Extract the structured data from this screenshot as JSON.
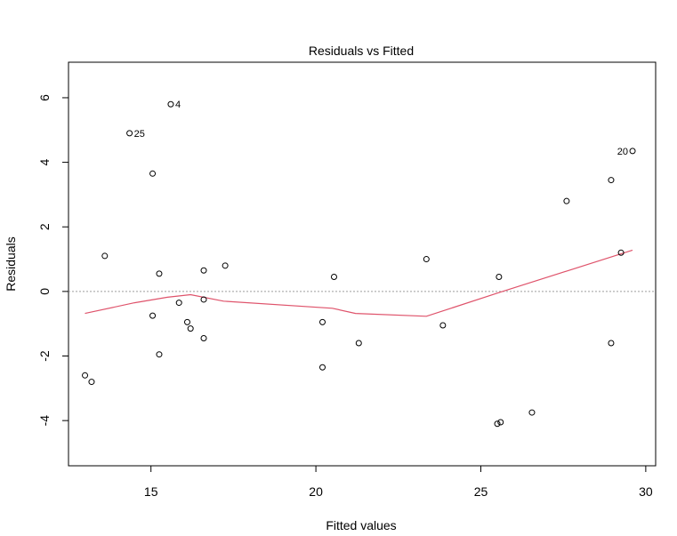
{
  "chart_data": {
    "type": "scatter",
    "title": "Residuals vs Fitted",
    "xlabel": "Fitted values",
    "ylabel": "Residuals",
    "xlim": [
      12.5,
      30.3
    ],
    "ylim": [
      -5.4,
      7.1
    ],
    "xticks": [
      15,
      20,
      25,
      30
    ],
    "yticks": [
      -4,
      -2,
      0,
      2,
      4,
      6
    ],
    "reference_line": 0,
    "points": [
      {
        "x": 13.0,
        "y": -2.6
      },
      {
        "x": 13.2,
        "y": -2.8
      },
      {
        "x": 13.6,
        "y": 1.1
      },
      {
        "x": 14.35,
        "y": 4.9,
        "label": "25"
      },
      {
        "x": 15.05,
        "y": 3.65
      },
      {
        "x": 15.05,
        "y": -0.75
      },
      {
        "x": 15.25,
        "y": 0.55
      },
      {
        "x": 15.25,
        "y": -1.95
      },
      {
        "x": 15.6,
        "y": 5.8,
        "label": "4"
      },
      {
        "x": 15.85,
        "y": -0.35
      },
      {
        "x": 16.1,
        "y": -0.95
      },
      {
        "x": 16.2,
        "y": -1.15
      },
      {
        "x": 16.6,
        "y": 0.65
      },
      {
        "x": 16.6,
        "y": -0.25
      },
      {
        "x": 16.6,
        "y": -1.45
      },
      {
        "x": 17.25,
        "y": 0.8
      },
      {
        "x": 20.2,
        "y": -0.95
      },
      {
        "x": 20.2,
        "y": -2.35
      },
      {
        "x": 20.55,
        "y": 0.45
      },
      {
        "x": 21.3,
        "y": -1.6
      },
      {
        "x": 23.35,
        "y": 1.0
      },
      {
        "x": 23.85,
        "y": -1.05
      },
      {
        "x": 25.5,
        "y": -4.1
      },
      {
        "x": 25.55,
        "y": 0.45
      },
      {
        "x": 25.6,
        "y": -4.05
      },
      {
        "x": 26.55,
        "y": -3.75
      },
      {
        "x": 27.6,
        "y": 2.8
      },
      {
        "x": 28.95,
        "y": 3.45
      },
      {
        "x": 28.95,
        "y": -1.6
      },
      {
        "x": 29.25,
        "y": 1.2
      },
      {
        "x": 29.6,
        "y": 4.35,
        "label": "20",
        "label_side": "left"
      }
    ],
    "smooth_line": {
      "color": "#DF536B",
      "x": [
        13.0,
        14.5,
        15.5,
        16.2,
        17.2,
        20.5,
        21.2,
        23.35,
        25.6,
        29.6
      ],
      "y": [
        -0.68,
        -0.35,
        -0.18,
        -0.1,
        -0.3,
        -0.52,
        -0.68,
        -0.77,
        -0.02,
        1.28
      ]
    }
  }
}
